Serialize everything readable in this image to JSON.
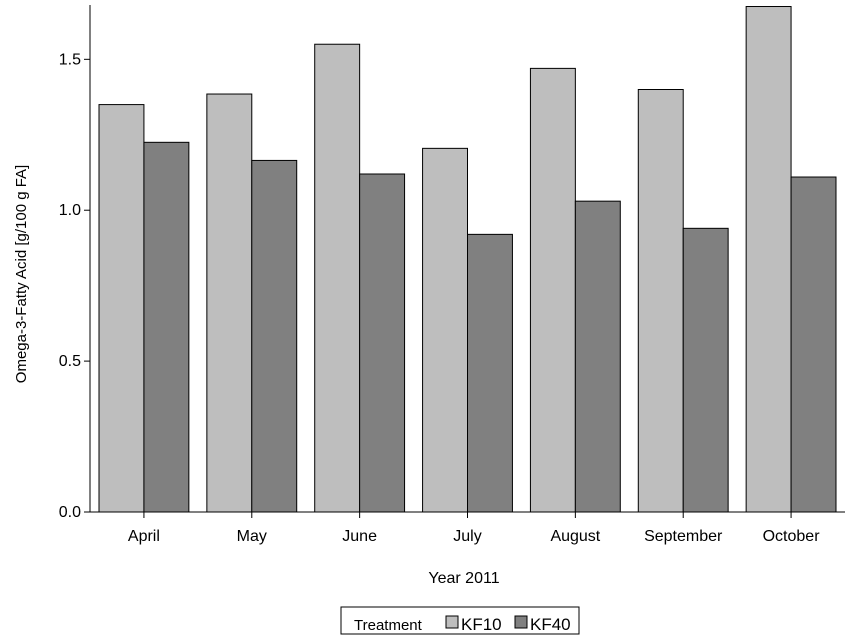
{
  "chart_data": {
    "type": "bar",
    "categories": [
      "April",
      "May",
      "June",
      "July",
      "August",
      "September",
      "October"
    ],
    "series": [
      {
        "name": "KF10",
        "values": [
          1.35,
          1.385,
          1.55,
          1.205,
          1.47,
          1.4,
          1.675
        ],
        "color": "#bebebe"
      },
      {
        "name": "KF40",
        "values": [
          1.225,
          1.165,
          1.12,
          0.92,
          1.03,
          0.94,
          1.11
        ],
        "color": "#808080"
      }
    ],
    "title": "",
    "xlabel": "Year 2011",
    "ylabel": "Omega-3-Fatty Acid [g/100 g FA]",
    "ylim": [
      0,
      1.68
    ],
    "yticks": [
      "0.0",
      "0.5",
      "1.0",
      "1.5"
    ],
    "grid": false,
    "legend": {
      "title": "Treatment",
      "placement": "bottom-center"
    }
  }
}
